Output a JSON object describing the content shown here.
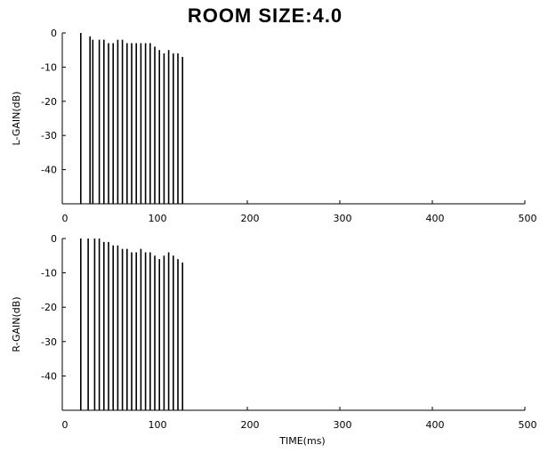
{
  "title": "ROOM SIZE:4.0",
  "xlabel": "TIME(ms)",
  "colors": {
    "ink": "#000000",
    "background": "#ffffff"
  },
  "chart_data": [
    {
      "type": "bar",
      "ylabel": "L-GAIN(dB)",
      "xlim": [
        0,
        500
      ],
      "ylim": [
        -50,
        0
      ],
      "xticks": [
        "0",
        "100",
        "200",
        "300",
        "400",
        "500"
      ],
      "yticks": [
        "0",
        "-10",
        "-20",
        "-30",
        "-40"
      ],
      "grid": false,
      "x": [
        20,
        30,
        33,
        40,
        45,
        50,
        55,
        60,
        65,
        70,
        75,
        80,
        85,
        90,
        95,
        100,
        105,
        110,
        115,
        120,
        125,
        130
      ],
      "values": [
        0,
        -1,
        -2,
        -2,
        -2,
        -3,
        -3,
        -2,
        -2,
        -3,
        -3,
        -3,
        -3,
        -3,
        -3,
        -4,
        -5,
        -6,
        -5,
        -6,
        -6,
        -7
      ]
    },
    {
      "type": "bar",
      "ylabel": "R-GAIN(dB)",
      "xlim": [
        0,
        500
      ],
      "ylim": [
        -50,
        0
      ],
      "xticks": [
        "0",
        "100",
        "200",
        "300",
        "400",
        "500"
      ],
      "yticks": [
        "0",
        "-10",
        "-20",
        "-30",
        "-40"
      ],
      "grid": false,
      "x": [
        20,
        28,
        35,
        40,
        45,
        50,
        55,
        60,
        65,
        70,
        75,
        80,
        85,
        90,
        95,
        100,
        105,
        110,
        115,
        120,
        125,
        130
      ],
      "values": [
        0,
        0,
        0,
        0,
        -1,
        -1,
        -2,
        -2,
        -3,
        -3,
        -4,
        -4,
        -3,
        -4,
        -4,
        -5,
        -6,
        -5,
        -4,
        -5,
        -6,
        -7
      ]
    }
  ]
}
